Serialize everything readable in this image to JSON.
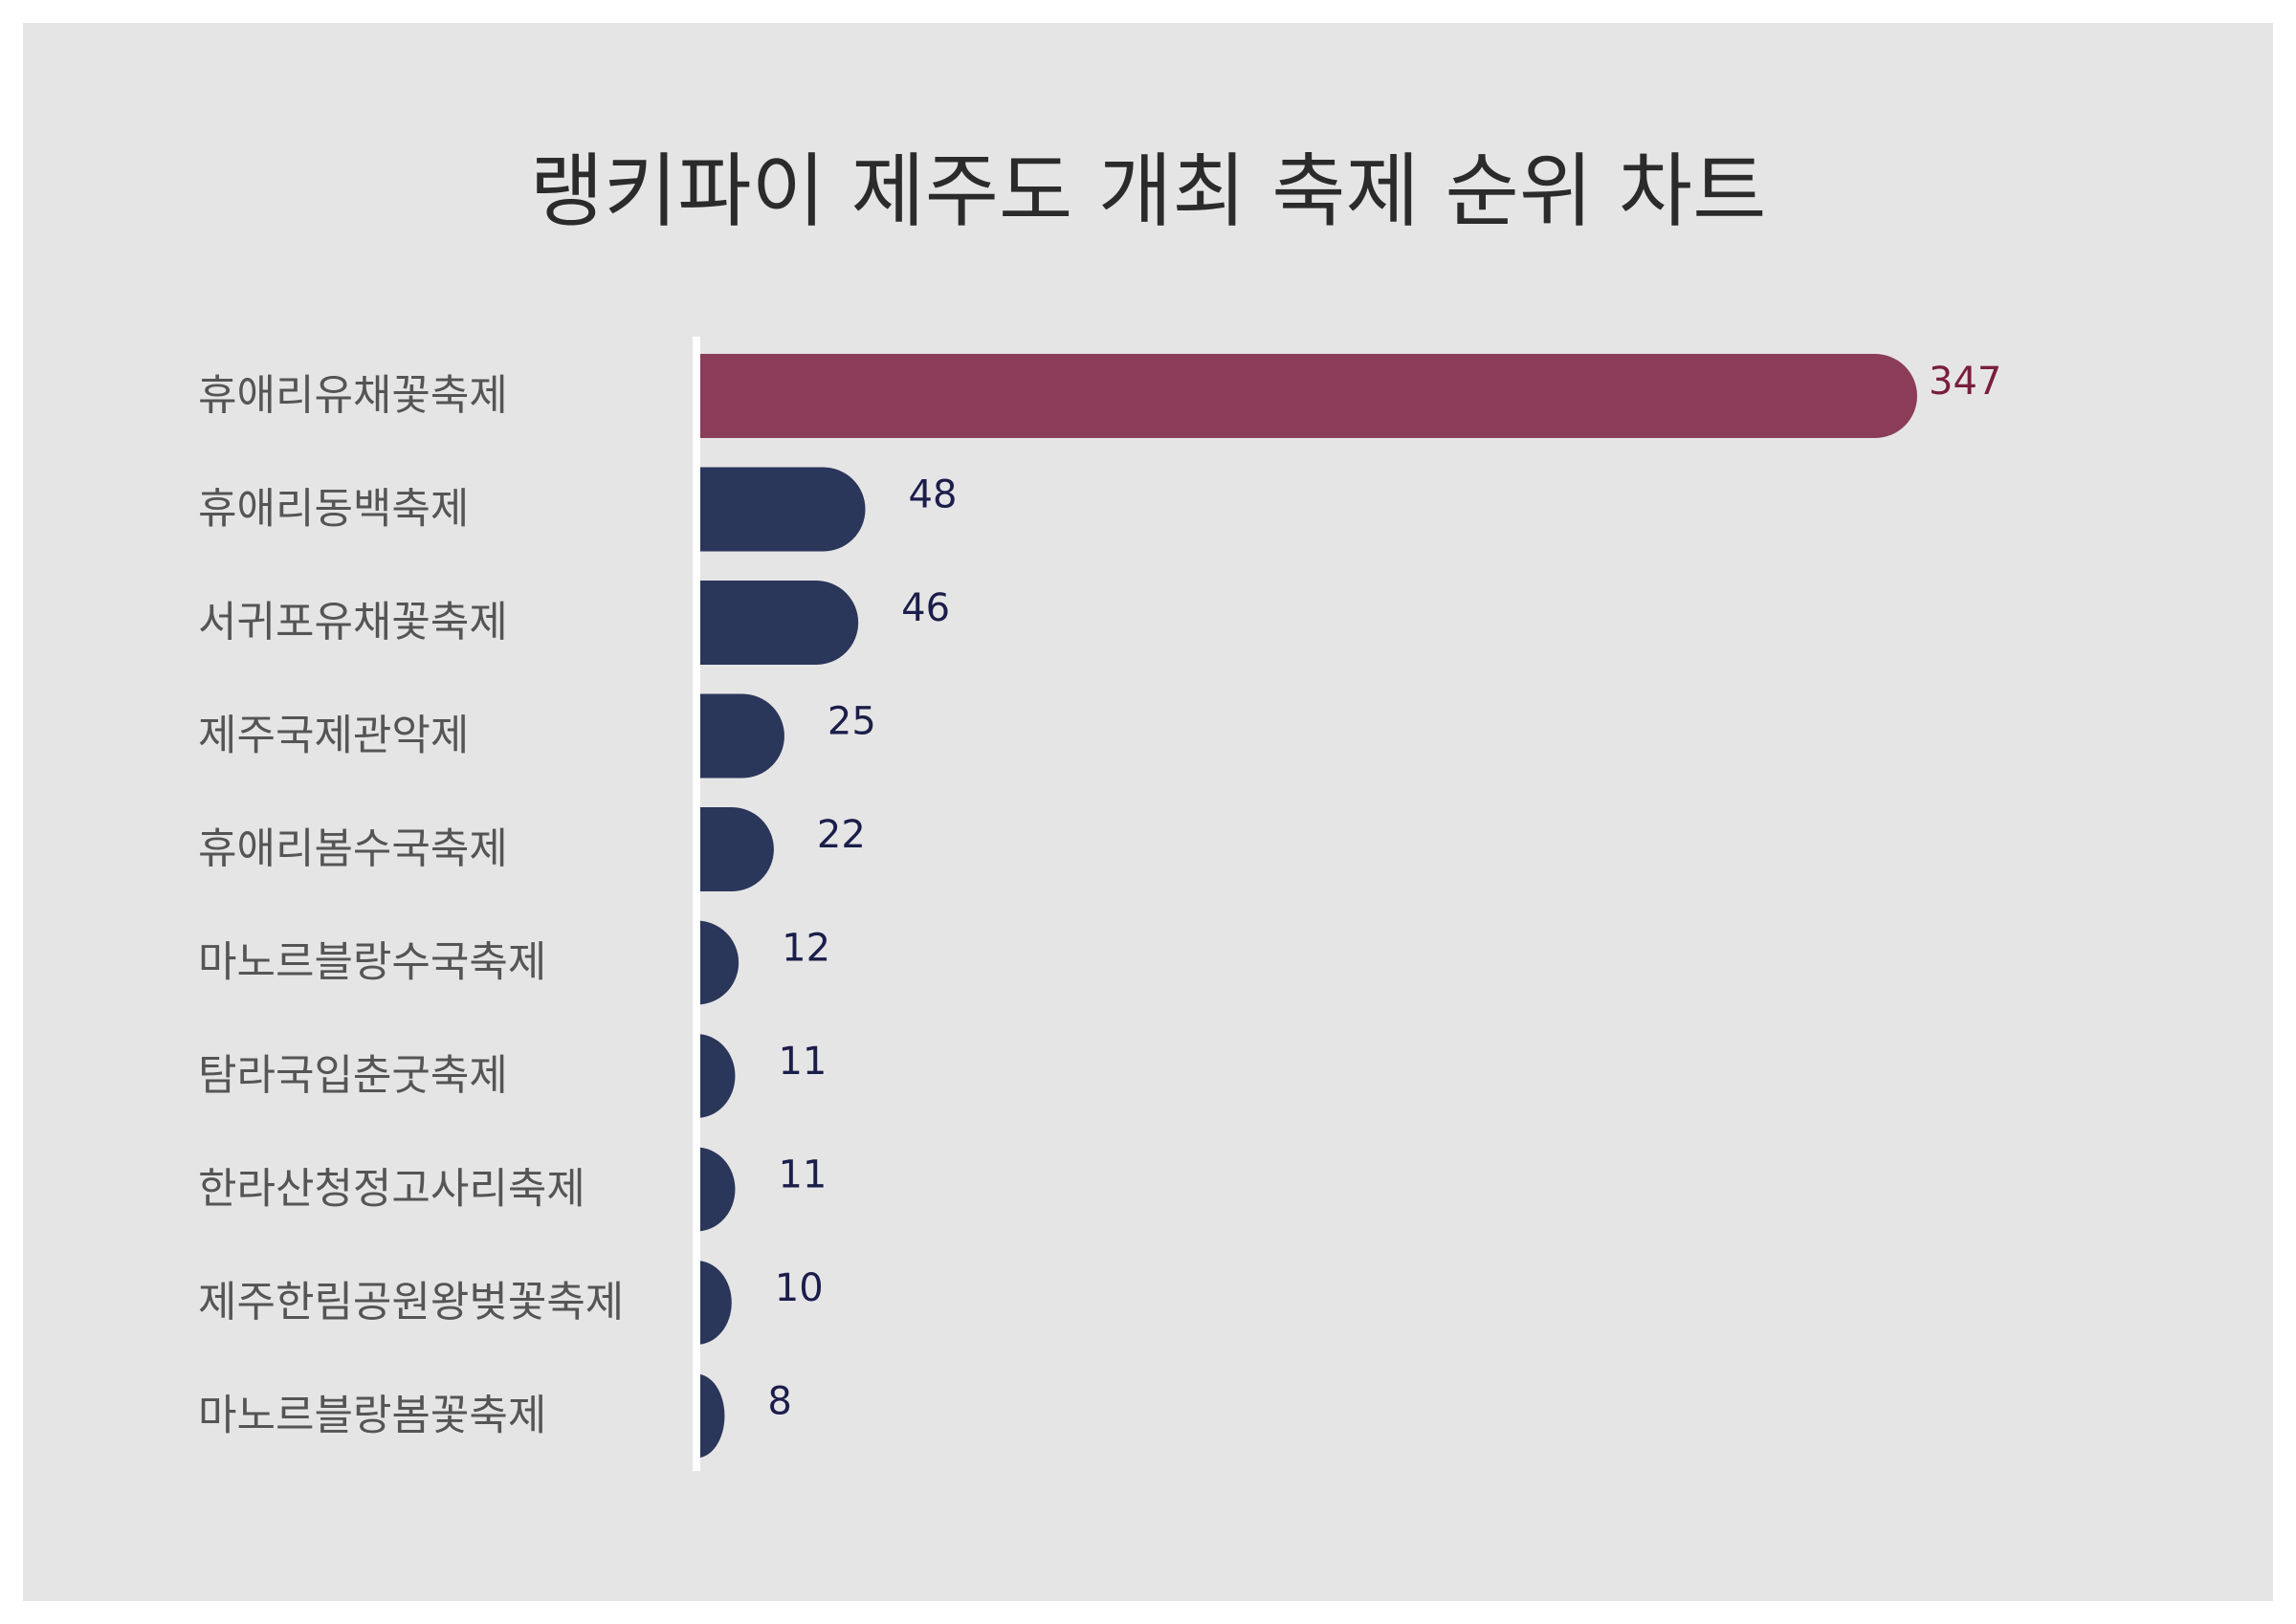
{
  "chart_data": {
    "type": "bar",
    "orientation": "horizontal",
    "title": "랭키파이 제주도 개최 축제 순위 차트",
    "categories": [
      "휴애리유채꽃축제",
      "휴애리동백축제",
      "서귀포유채꽃축제",
      "제주국제관악제",
      "휴애리봄수국축제",
      "마노르블랑수국축제",
      "탐라국입춘굿축제",
      "한라산청정고사리축제",
      "제주한림공원왕벚꽃축제",
      "마노르블랑봄꽃축제"
    ],
    "values": [
      347,
      48,
      46,
      25,
      22,
      12,
      11,
      11,
      10,
      8
    ],
    "value_labels": [
      "347",
      "48",
      "46",
      "25",
      "22",
      "12",
      "11",
      "11",
      "10",
      "8"
    ],
    "xlim": [
      0,
      347
    ],
    "grid": false,
    "legend": "none",
    "colors": {
      "highlight_bar": "#8b3c59",
      "highlight_label": "#7a1e3e",
      "bar": "#2b365b",
      "value_label": "#1b1e4a",
      "category_label": "#555555",
      "axis_line": "#ffffff",
      "background": "#e6e5e6",
      "title": "#2b2b2b"
    }
  }
}
